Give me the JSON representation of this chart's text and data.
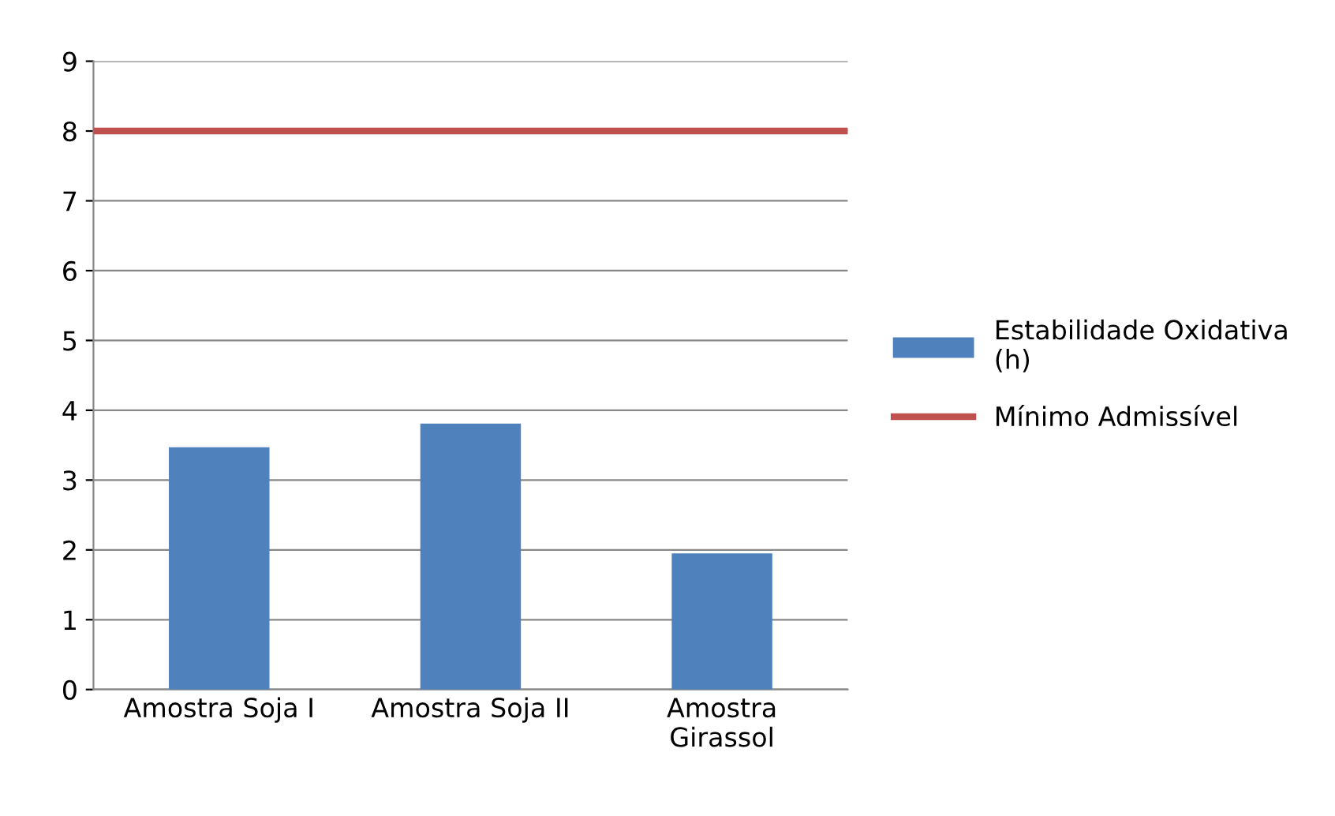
{
  "chart_data": {
    "type": "bar",
    "categories": [
      "Amostra Soja I",
      "Amostra Soja II",
      "Amostra\nGirassol"
    ],
    "series": [
      {
        "name": "Estabilidade Oxidativa\n(h)",
        "color": "#4f81bd",
        "values": [
          3.47,
          3.81,
          1.95
        ]
      }
    ],
    "ref_lines": [
      {
        "axis": "y",
        "value": 8,
        "label": "Mínimo Admissível",
        "color": "#c0504d"
      }
    ],
    "ylim": [
      0,
      9
    ],
    "yticks": [
      0,
      1,
      2,
      3,
      4,
      5,
      6,
      7,
      8,
      9
    ],
    "grid": "y",
    "legend": "right"
  }
}
